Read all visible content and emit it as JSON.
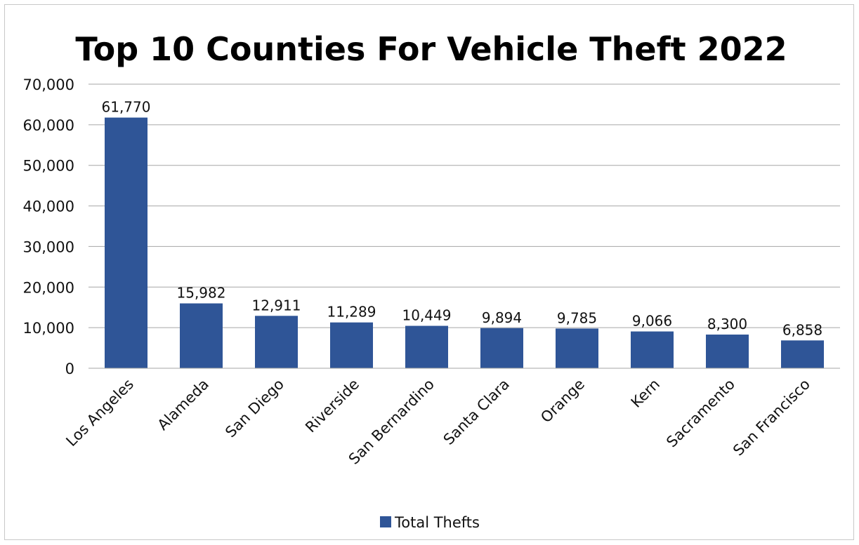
{
  "chart_data": {
    "type": "bar",
    "title": "Top 10 Counties For Vehicle Theft 2022",
    "xlabel": "",
    "ylabel": "",
    "categories": [
      "Los Angeles",
      "Alameda",
      "San Diego",
      "Riverside",
      "San Bernardino",
      "Santa Clara",
      "Orange",
      "Kern",
      "Sacramento",
      "San Francisco"
    ],
    "series": [
      {
        "name": "Total Thefts",
        "values": [
          61770,
          15982,
          12911,
          11289,
          10449,
          9894,
          9785,
          9066,
          8300,
          6858
        ],
        "data_labels": [
          "61,770",
          "15,982",
          "12,911",
          "11,289",
          "10,449",
          "9,894",
          "9,785",
          "9,066",
          "8,300",
          "6,858"
        ],
        "color": "#2f5597"
      }
    ],
    "ylim": [
      0,
      70000
    ],
    "yticks": [
      0,
      10000,
      20000,
      30000,
      40000,
      50000,
      60000,
      70000
    ],
    "ytick_labels": [
      "0",
      "10,000",
      "20,000",
      "30,000",
      "40,000",
      "50,000",
      "60,000",
      "70,000"
    ],
    "grid": true,
    "grid_color": "#a6a6a6",
    "legend_position": "bottom"
  }
}
